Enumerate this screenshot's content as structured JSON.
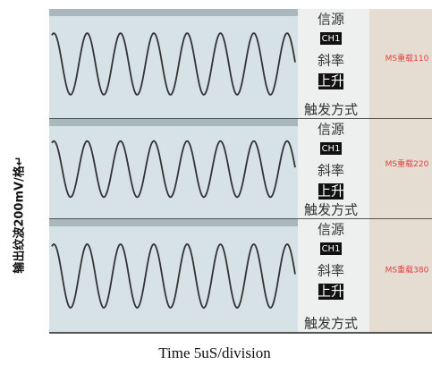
{
  "y_label": "输出纹波200mV/格↵",
  "caption": "Time 5uS/division",
  "panels": [
    {
      "source_label": "信源",
      "source_value": "CH1",
      "slope_label": "斜率",
      "slope_value": "上升",
      "trigger_label": "触发方式",
      "load_label": "MS重载110"
    },
    {
      "source_label": "信源",
      "source_value": "CH1",
      "slope_label": "斜率",
      "slope_value": "上升",
      "trigger_label": "触发方式",
      "load_label": "MS重载220"
    },
    {
      "source_label": "信源",
      "source_value": "CH1",
      "slope_label": "斜率",
      "slope_value": "上升",
      "trigger_label": "触发方式",
      "load_label": "MS重载380"
    }
  ]
}
